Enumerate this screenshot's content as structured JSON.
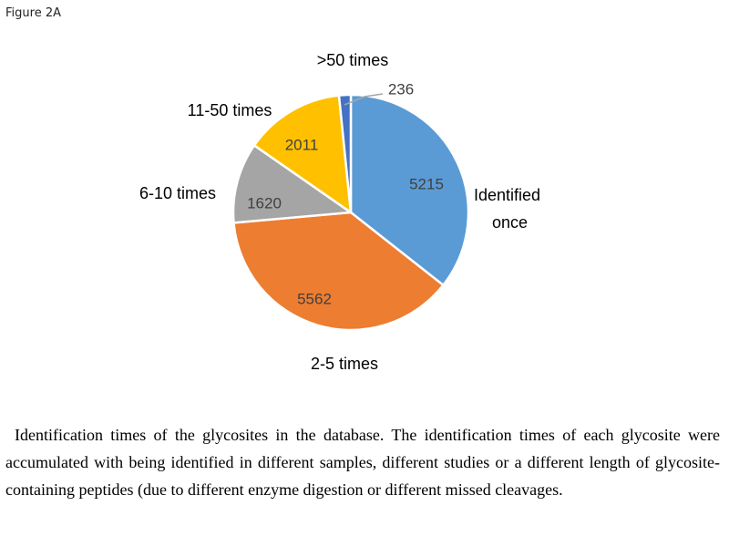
{
  "figure_label": "Figure 2A",
  "caption": "Identification times of the glycosites in the database. The identification times of each glycosite were accumulated with being identified in different samples, different studies or a different length of glycosite-containing peptides (due to different enzyme digestion or different missed cleavages.",
  "chart_data": {
    "type": "pie",
    "start": "top",
    "direction": "clockwise",
    "slices": [
      {
        "label": "Identified once",
        "value": 5215,
        "color": "#5B9BD5"
      },
      {
        "label": "2-5 times",
        "value": 5562,
        "color": "#ED7D31"
      },
      {
        "label": "6-10 times",
        "value": 1620,
        "color": "#A5A5A5"
      },
      {
        "label": "11-50 times",
        "value": 2011,
        "color": "#FFC000"
      },
      {
        "label": ">50 times",
        "value": 236,
        "color": "#4472C4"
      }
    ]
  }
}
